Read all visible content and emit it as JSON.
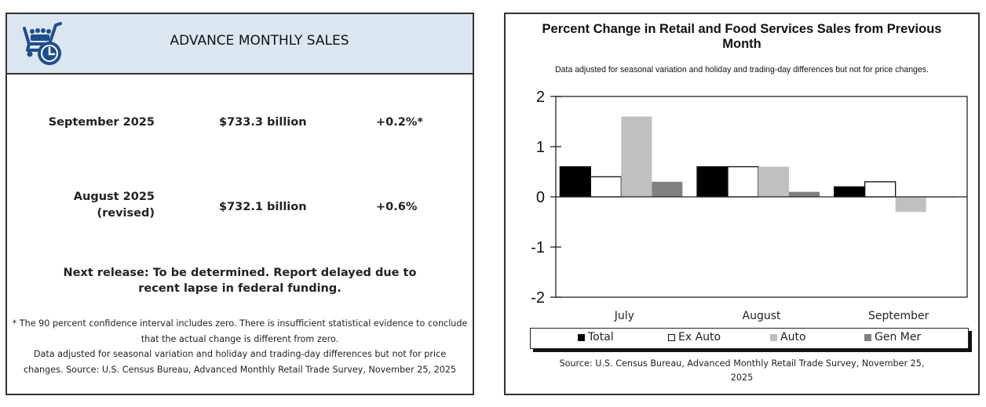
{
  "summary": {
    "title": "ADVANCE MONTHLY SALES",
    "icon": "shopping-cart-clock-icon",
    "header_color": "#dce6f1",
    "icon_color": "#1f4e8c",
    "rows": [
      {
        "period": "September 2025",
        "period_note": "",
        "sales": "$733.3 billion",
        "change": "+0.2%*"
      },
      {
        "period": "August 2025",
        "period_note": "(revised)",
        "sales": "$732.1 billion",
        "change": "+0.6%"
      }
    ],
    "next_release": "Next release: To be determined. Report delayed due to recent lapse in federal funding.",
    "footnote_1": "* The 90 percent confidence interval includes zero. There is insufficient statistical evidence to conclude that the actual change is different from zero.",
    "footnote_2": "Data adjusted for seasonal variation and holiday and trading-day differences but not for price changes. Source: U.S. Census Bureau, Advanced Monthly Retail Trade Survey, November 25, 2025"
  },
  "chart_data": {
    "type": "bar",
    "title": "Percent Change in Retail and Food Services Sales from Previous Month",
    "subtitle": "Data adjusted for seasonal variation and holiday and trading-day differences but not for price changes.",
    "xlabel": "",
    "ylabel": "",
    "categories": [
      "July",
      "August",
      "September"
    ],
    "ylim": [
      -2,
      2
    ],
    "yticks": [
      2,
      1,
      0,
      -1,
      -2
    ],
    "grid": false,
    "legend_position": "bottom",
    "series": [
      {
        "name": "Total",
        "values": [
          0.6,
          0.6,
          0.2
        ],
        "color": "#000000",
        "outline": true
      },
      {
        "name": "Ex Auto",
        "values": [
          0.4,
          0.6,
          0.3
        ],
        "color": "#ffffff",
        "outline": true
      },
      {
        "name": "Auto",
        "values": [
          1.6,
          0.6,
          -0.3
        ],
        "color": "#c0c0c0",
        "outline": false
      },
      {
        "name": "Gen Mer",
        "values": [
          0.3,
          0.1,
          0.0
        ],
        "color": "#808080",
        "outline": false
      }
    ],
    "source": "Source: U.S. Census Bureau, Advanced Monthly Retail Trade Survey, November 25, 2025"
  }
}
